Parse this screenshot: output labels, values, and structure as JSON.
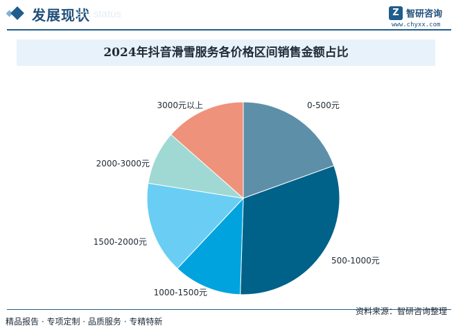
{
  "header": {
    "section_title": "发展现状",
    "section_subtitle": "ent status",
    "logo_name": "智研咨询",
    "logo_url": "www.chyxx.com"
  },
  "chart_data": {
    "type": "pie",
    "title": "2024年抖音滑雪服务各价格区间销售金额占比",
    "slices": [
      {
        "label": "0-500元",
        "value": 19.5,
        "color": "#5e8fa8"
      },
      {
        "label": "500-1000元",
        "value": 31.0,
        "color": "#006189"
      },
      {
        "label": "1000-1500元",
        "value": 11.5,
        "color": "#00a3dd"
      },
      {
        "label": "1500-2000元",
        "value": 15.5,
        "color": "#6acef4"
      },
      {
        "label": "2000-3000元",
        "value": 9.0,
        "color": "#a0d9d4"
      },
      {
        "label": "3000元以上",
        "value": 13.5,
        "color": "#ef927b"
      }
    ]
  },
  "footer": {
    "left_text": "精品报告 · 专项定制 · 品质服务 · 专精特新",
    "source": "资料来源：智研咨询整理"
  }
}
